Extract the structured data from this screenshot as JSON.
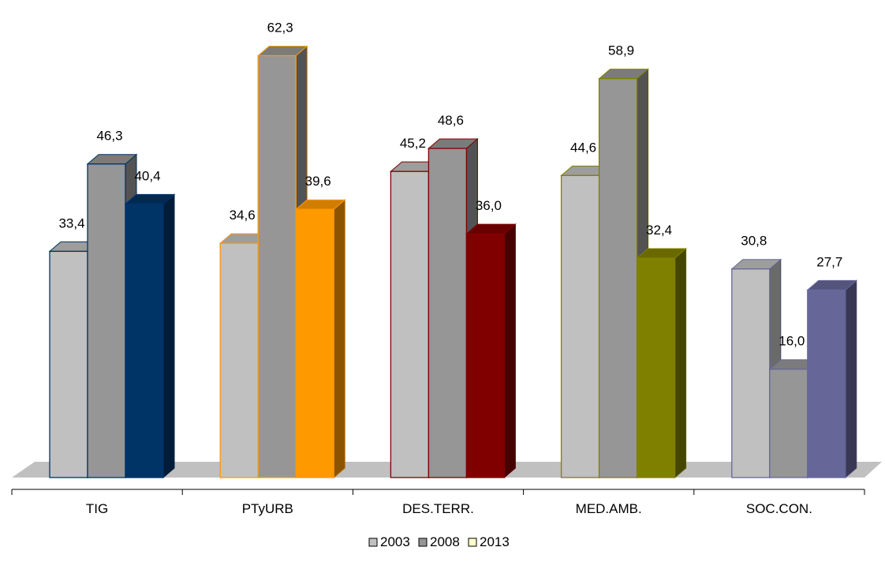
{
  "chart_data": {
    "type": "bar",
    "title": "",
    "xlabel": "",
    "ylabel": "",
    "ylim": [
      0,
      65
    ],
    "grid": false,
    "legend_position": "bottom",
    "style": "3d-clustered",
    "categories": [
      "TIG",
      "PTyURB",
      "DES.TERR.",
      "MED.AMB.",
      "SOC.CON."
    ],
    "series": [
      {
        "name": "2003",
        "values": [
          33.4,
          34.6,
          45.2,
          44.6,
          30.8
        ],
        "labels": [
          "33,4",
          "34,6",
          "45,2",
          "44,6",
          "30,8"
        ]
      },
      {
        "name": "2008",
        "values": [
          46.3,
          62.3,
          48.6,
          58.9,
          16.0
        ],
        "labels": [
          "46,3",
          "62,3",
          "48,6",
          "58,9",
          "16,0"
        ]
      },
      {
        "name": "2013",
        "values": [
          40.4,
          39.6,
          36.0,
          32.4,
          27.7
        ],
        "labels": [
          "40,4",
          "39,6",
          "36,0",
          "32,4",
          "27,7"
        ]
      }
    ],
    "category_colors": [
      "#003366",
      "#FF9900",
      "#800000",
      "#808000",
      "#666699"
    ],
    "series_fill_colors": [
      "#C0C0C0",
      "#969696",
      "category"
    ],
    "legend_colors": [
      "#C0C0C0",
      "#969696",
      "#FFFFCC"
    ],
    "floor_color": "#C0C0C0"
  }
}
